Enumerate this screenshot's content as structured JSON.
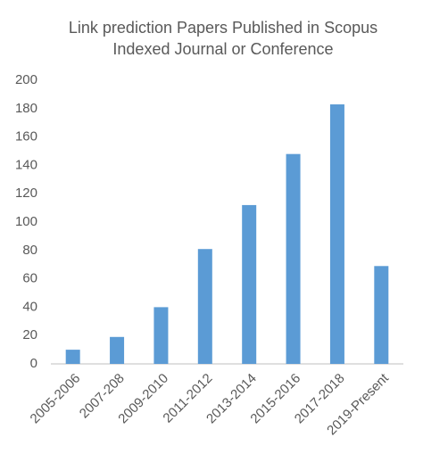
{
  "chart_data": {
    "type": "bar",
    "title": [
      "Link prediction Papers Published in Scopus",
      "Indexed Journal or Conference"
    ],
    "categories": [
      "2005-2006",
      "2007-208",
      "2009-2010",
      "2011-2012",
      "2013-2014",
      "2015-2016",
      "2017-2018",
      "2019-Present"
    ],
    "values": [
      10,
      19,
      40,
      81,
      112,
      148,
      183,
      69
    ],
    "color": "#5b9bd5",
    "ylim": [
      0,
      200
    ],
    "yticks": [
      0,
      20,
      40,
      60,
      80,
      100,
      120,
      140,
      160,
      180,
      200
    ],
    "grid": false
  }
}
